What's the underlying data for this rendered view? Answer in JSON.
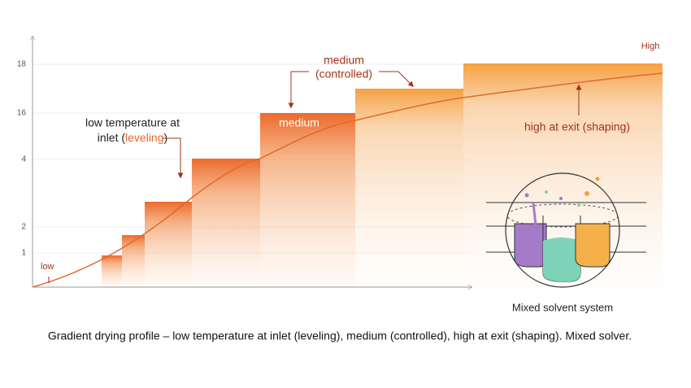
{
  "axis": {
    "tick_labels": [
      "18",
      "16",
      "4",
      "2",
      "1"
    ]
  },
  "annotations": {
    "low": "low",
    "high": "High",
    "inlet_line1": "low temperature at",
    "inlet_line2": [
      "inlet (",
      "leveling",
      ")"
    ],
    "medium_top": [
      "medium",
      "(controlled)"
    ],
    "medium_box": "medium",
    "exit": "high at exit (shaping)"
  },
  "inset": {
    "label": "Mixed solvent system"
  },
  "caption": "Gradient drying profile – low temperature at inlet (leveling), medium (controlled), high at exit (shaping). Mixed solver."
}
